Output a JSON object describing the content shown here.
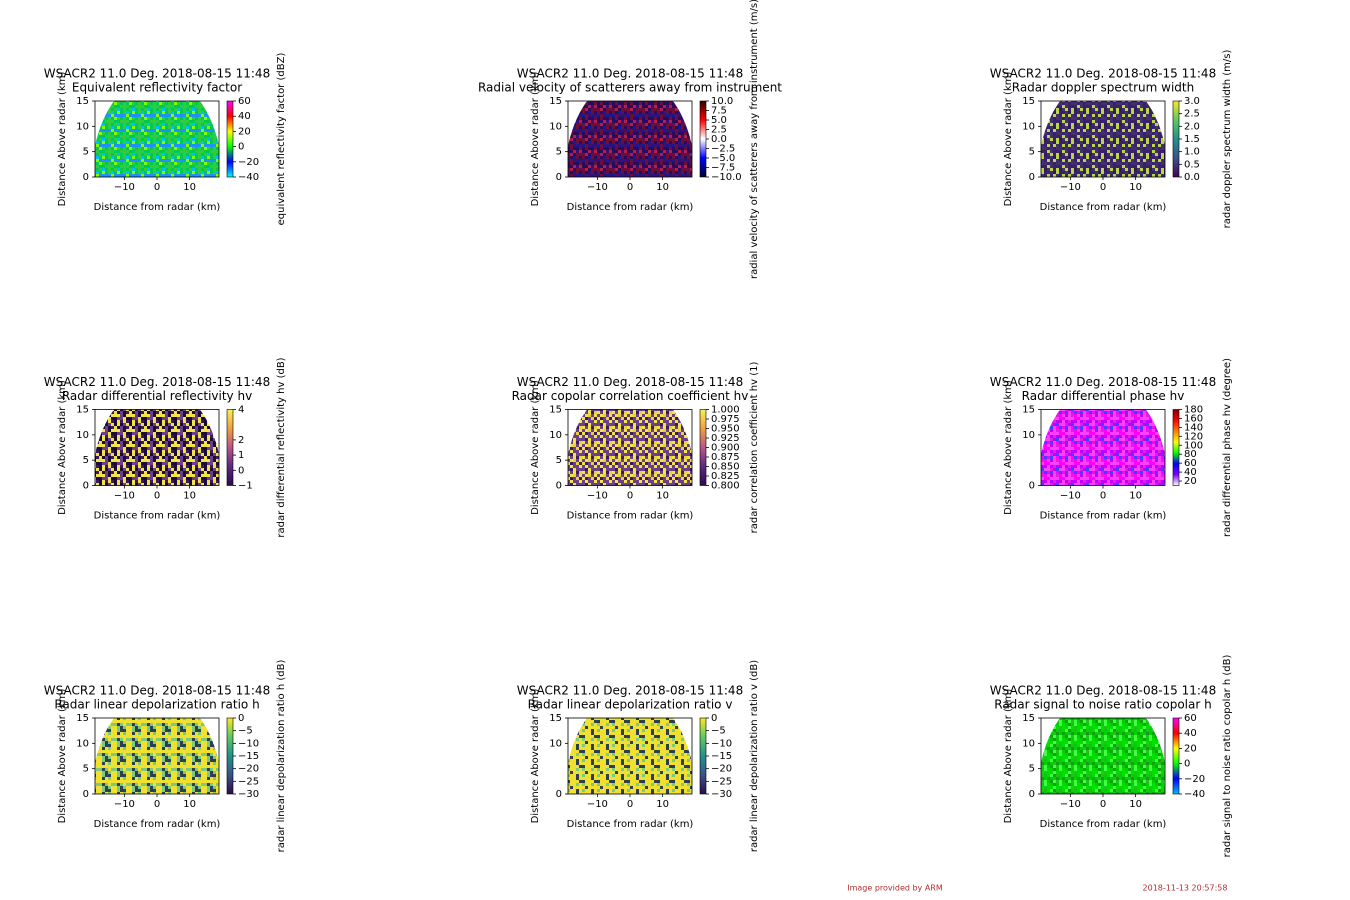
{
  "chart_data": [
    {
      "type": "rhi",
      "title": "WSACR2 11.0 Deg. 2018-08-15 11:48",
      "subtitle": "Equivalent reflectivity factor",
      "xlabel": "Distance from radar (km)",
      "ylabel": "Distance Above radar (km)",
      "xlim": [
        -19,
        19
      ],
      "ylim": [
        0,
        15
      ],
      "xticks": [
        {
          "value": -10,
          "label": "−10"
        },
        0,
        10
      ],
      "yticks": [
        0,
        5,
        10,
        15
      ],
      "colorbar_label": "equivalent reflectivity factor (dBZ)",
      "clim": [
        -40,
        60
      ],
      "cticks": [
        60,
        40,
        20,
        0,
        {
          "value": -20,
          "label": "−20"
        },
        {
          "value": -40,
          "label": "−40"
        }
      ],
      "fill_colors": [
        "#00c853",
        "#2ecc40",
        "#1e90ff",
        "#00bfff",
        "#7fff00"
      ],
      "colorbar_colors": [
        "#00ffff",
        "#0000ff",
        "#00ff00",
        "#ffff00",
        "#ff0000",
        "#ff00ff"
      ]
    },
    {
      "type": "rhi",
      "title": "WSACR2 11.0 Deg. 2018-08-15 11:48",
      "subtitle": "Radial velocity of scatterers away from instrument",
      "xlabel": "Distance from radar (km)",
      "ylabel": "Distance Above radar (km)",
      "xlim": [
        -19,
        19
      ],
      "ylim": [
        0,
        15
      ],
      "xticks": [
        {
          "value": -10,
          "label": "−10"
        },
        0,
        10
      ],
      "yticks": [
        0,
        5,
        10,
        15
      ],
      "colorbar_label": "radial velocity of scatterers away from instrument (m/s)",
      "clim": [
        -10,
        10
      ],
      "cticks": [
        {
          "value": 10,
          "label": "10.0"
        },
        7.5,
        {
          "value": 5,
          "label": "5.0"
        },
        2.5,
        {
          "value": 0,
          "label": "0.0"
        },
        {
          "value": -2.5,
          "label": "−2.5"
        },
        {
          "value": -5,
          "label": "−5.0"
        },
        {
          "value": -7.5,
          "label": "−7.5"
        },
        {
          "value": -10,
          "label": "−10.0"
        }
      ],
      "fill_colors": [
        "#2a0a5e",
        "#6b0f3a",
        "#1a1a8c",
        "#b0204a",
        "#3b0f70"
      ],
      "colorbar_colors": [
        "#000033",
        "#0000ff",
        "#ffffff",
        "#ff0000",
        "#330000"
      ]
    },
    {
      "type": "rhi",
      "title": "WSACR2 11.0 Deg. 2018-08-15 11:48",
      "subtitle": "Radar doppler spectrum width",
      "xlabel": "Distance from radar (km)",
      "ylabel": "Distance Above radar (km)",
      "xlim": [
        -19,
        19
      ],
      "ylim": [
        0,
        15
      ],
      "xticks": [
        {
          "value": -10,
          "label": "−10"
        },
        0,
        10
      ],
      "yticks": [
        0,
        5,
        10,
        15
      ],
      "colorbar_label": "radar doppler spectrum width (m/s)",
      "clim": [
        0,
        3
      ],
      "cticks": [
        {
          "value": 3,
          "label": "3.0"
        },
        2.5,
        {
          "value": 2,
          "label": "2.0"
        },
        1.5,
        {
          "value": 1,
          "label": "1.0"
        },
        0.5,
        {
          "value": 0,
          "label": "0.0"
        }
      ],
      "fill_colors": [
        "#3b1f6b",
        "#3b1f6b",
        "#41306e",
        "#2e1a5a",
        "#b8d84a"
      ],
      "colorbar_colors": [
        "#440154",
        "#3b528b",
        "#21918c",
        "#5ec962",
        "#fde725"
      ]
    },
    {
      "type": "rhi",
      "title": "WSACR2 11.0 Deg. 2018-08-15 11:48",
      "subtitle": "Radar differential reflectivity hv",
      "xlabel": "Distance from radar (km)",
      "ylabel": "Distance Above radar (km)",
      "xlim": [
        -19,
        19
      ],
      "ylim": [
        0,
        15
      ],
      "xticks": [
        {
          "value": -10,
          "label": "−10"
        },
        0,
        10
      ],
      "yticks": [
        0,
        5,
        10,
        15
      ],
      "colorbar_label": "radar differential reflectivity hv (dB)",
      "clim": [
        -1,
        4
      ],
      "cticks": [
        4,
        2,
        1,
        0,
        {
          "value": -1,
          "label": "−1"
        }
      ],
      "fill_colors": [
        "#f2e34a",
        "#3a1a5e",
        "#f2e34a",
        "#6b3f8a",
        "#1a0a3a"
      ],
      "colorbar_colors": [
        "#2d0a4e",
        "#5b2a7e",
        "#b8568a",
        "#f0a040",
        "#f8f050"
      ]
    },
    {
      "type": "rhi",
      "title": "WSACR2 11.0 Deg. 2018-08-15 11:48",
      "subtitle": "Radar copolar correlation coefficient hv",
      "xlabel": "Distance from radar (km)",
      "ylabel": "Distance Above radar (km)",
      "xlim": [
        -19,
        19
      ],
      "ylim": [
        0,
        15
      ],
      "xticks": [
        {
          "value": -10,
          "label": "−10"
        },
        0,
        10
      ],
      "yticks": [
        0,
        5,
        10,
        15
      ],
      "colorbar_label": "radar correlation coefficient hv (1)",
      "clim": [
        0.8,
        1
      ],
      "cticks": [
        {
          "value": 1,
          "label": "1.000"
        },
        {
          "value": 0.975,
          "label": "0.975"
        },
        {
          "value": 0.95,
          "label": "0.950"
        },
        {
          "value": 0.925,
          "label": "0.925"
        },
        {
          "value": 0.9,
          "label": "0.900"
        },
        {
          "value": 0.875,
          "label": "0.875"
        },
        {
          "value": 0.85,
          "label": "0.850"
        },
        {
          "value": 0.825,
          "label": "0.825"
        },
        {
          "value": 0.8,
          "label": "0.800"
        }
      ],
      "fill_colors": [
        "#f2e34a",
        "#f2e34a",
        "#3a1a5e",
        "#e8d040",
        "#6b3f8a"
      ],
      "colorbar_colors": [
        "#2d0a4e",
        "#5b2a7e",
        "#b8568a",
        "#f0a040",
        "#f8f050"
      ]
    },
    {
      "type": "rhi",
      "title": "WSACR2 11.0 Deg. 2018-08-15 11:48",
      "subtitle": "Radar differential phase hv",
      "xlabel": "Distance from radar (km)",
      "ylabel": "Distance Above radar (km)",
      "xlim": [
        -19,
        19
      ],
      "ylim": [
        0,
        15
      ],
      "xticks": [
        {
          "value": -10,
          "label": "−10"
        },
        0,
        10
      ],
      "yticks": [
        0,
        10,
        15
      ],
      "colorbar_label": "radar differential phase hv (degree)",
      "clim": [
        10,
        180
      ],
      "cticks": [
        180,
        160,
        140,
        120,
        100,
        80,
        60,
        40,
        20
      ],
      "fill_colors": [
        "#e020e0",
        "#ff40ff",
        "#c000ff",
        "#ff00ff",
        "#4040ff"
      ],
      "colorbar_colors": [
        "#ffffff",
        "#8000ff",
        "#0000ff",
        "#00ff00",
        "#ffff00",
        "#ff8000",
        "#ff0000",
        "#800000"
      ]
    },
    {
      "type": "rhi",
      "title": "WSACR2 11.0 Deg. 2018-08-15 11:48",
      "subtitle": "Radar linear depolarization ratio h",
      "xlabel": "Distance from radar (km)",
      "ylabel": "Distance Above radar (km)",
      "xlim": [
        -19,
        19
      ],
      "ylim": [
        0,
        15
      ],
      "xticks": [
        {
          "value": -10,
          "label": "−10"
        },
        0,
        10
      ],
      "yticks": [
        0,
        5,
        10,
        15
      ],
      "colorbar_label": "radar linear depolarization ratio h (dB)",
      "clim": [
        -30,
        0
      ],
      "cticks": [
        0,
        {
          "value": -5,
          "label": "−5"
        },
        {
          "value": -10,
          "label": "−10"
        },
        {
          "value": -15,
          "label": "−15"
        },
        {
          "value": -20,
          "label": "−20"
        },
        {
          "value": -25,
          "label": "−25"
        },
        {
          "value": -30,
          "label": "−30"
        }
      ],
      "fill_colors": [
        "#f0e130",
        "#f0e130",
        "#f0e130",
        "#7fc97f",
        "#2c3e50"
      ],
      "colorbar_colors": [
        "#2d0a4e",
        "#3b528b",
        "#21918c",
        "#5ec962",
        "#fde725"
      ]
    },
    {
      "type": "rhi",
      "title": "WSACR2 11.0 Deg. 2018-08-15 11:48",
      "subtitle": "Radar linear depolarization ratio v",
      "xlabel": "Distance from radar (km)",
      "ylabel": "Distance Above radar (km)",
      "xlim": [
        -19,
        19
      ],
      "ylim": [
        0,
        15
      ],
      "xticks": [
        {
          "value": -10,
          "label": "−10"
        },
        0,
        10
      ],
      "yticks": [
        0,
        10,
        15
      ],
      "colorbar_label": "radar linear depolarization ratio v (dB)",
      "clim": [
        -30,
        0
      ],
      "cticks": [
        0,
        {
          "value": -5,
          "label": "−5"
        },
        {
          "value": -10,
          "label": "−10"
        },
        {
          "value": -15,
          "label": "−15"
        },
        {
          "value": -20,
          "label": "−20"
        },
        {
          "value": -25,
          "label": "−25"
        },
        {
          "value": -30,
          "label": "−30"
        }
      ],
      "fill_colors": [
        "#f0e130",
        "#f0e130",
        "#f0e130",
        "#7fc97f",
        "#2c3e50"
      ],
      "colorbar_colors": [
        "#2d0a4e",
        "#3b528b",
        "#21918c",
        "#5ec962",
        "#fde725"
      ]
    },
    {
      "type": "rhi",
      "title": "WSACR2 11.0 Deg. 2018-08-15 11:48",
      "subtitle": "Radar signal to noise ratio copolar h",
      "xlabel": "Distance from radar (km)",
      "ylabel": "Distance Above radar (km)",
      "xlim": [
        -19,
        19
      ],
      "ylim": [
        0,
        15
      ],
      "xticks": [
        {
          "value": -10,
          "label": "−10"
        },
        0,
        10
      ],
      "yticks": [
        0,
        5,
        10,
        15
      ],
      "colorbar_label": "radar signal to noise ratio copolar h (dB)",
      "clim": [
        -40,
        60
      ],
      "cticks": [
        60,
        40,
        20,
        0,
        {
          "value": -20,
          "label": "−20"
        },
        {
          "value": -40,
          "label": "−40"
        }
      ],
      "fill_colors": [
        "#00d000",
        "#20c020",
        "#00e000",
        "#40ff40",
        "#10a010"
      ],
      "colorbar_colors": [
        "#00bfff",
        "#0000ff",
        "#00ff00",
        "#ffff00",
        "#ff0000",
        "#ff00ff"
      ]
    }
  ],
  "footer": {
    "credit": "Image provided by ARM",
    "timestamp": "2018-11-13 20:57:58"
  }
}
